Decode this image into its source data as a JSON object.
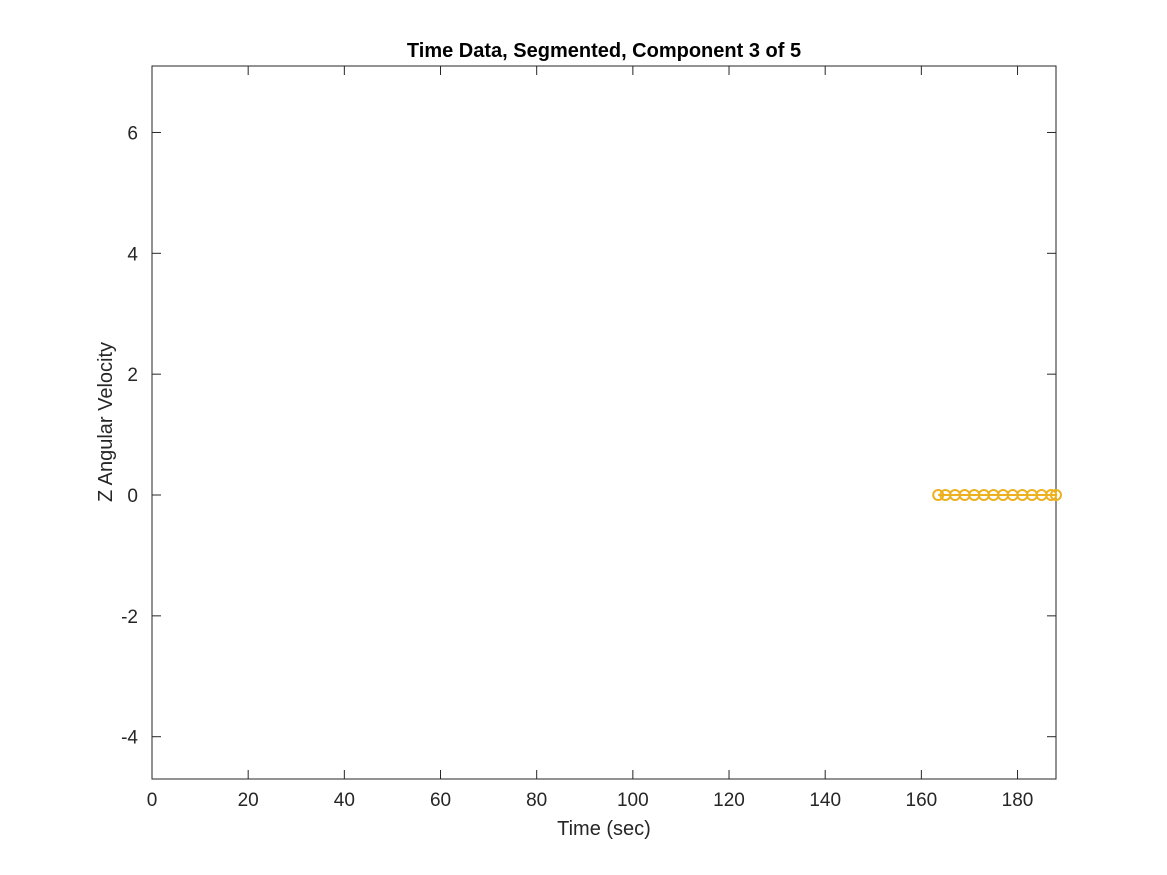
{
  "chart_data": {
    "type": "line",
    "title": "Time Data, Segmented, Component 3 of 5",
    "xlabel": "Time (sec)",
    "ylabel": "Z Angular Velocity",
    "xlim": [
      0,
      188
    ],
    "ylim": [
      -4.7,
      7.1
    ],
    "xticks": [
      0,
      20,
      40,
      60,
      80,
      100,
      120,
      140,
      160,
      180
    ],
    "xtick_labels": [
      "0",
      "20",
      "40",
      "60",
      "80",
      "100",
      "120",
      "140",
      "160",
      "180"
    ],
    "yticks": [
      -4,
      -2,
      0,
      2,
      4,
      6
    ],
    "ytick_labels": [
      "-4",
      "-2",
      "0",
      "2",
      "4",
      "6"
    ],
    "grid": false,
    "series": [
      {
        "color": "#EDB120",
        "x": [
          163.5,
          165,
          167,
          169,
          171,
          173,
          175,
          177,
          179,
          181,
          183,
          185,
          187,
          188
        ],
        "y": [
          0,
          0,
          0,
          0,
          0,
          0,
          0,
          0,
          0,
          0,
          0,
          0,
          0,
          0
        ]
      }
    ]
  }
}
